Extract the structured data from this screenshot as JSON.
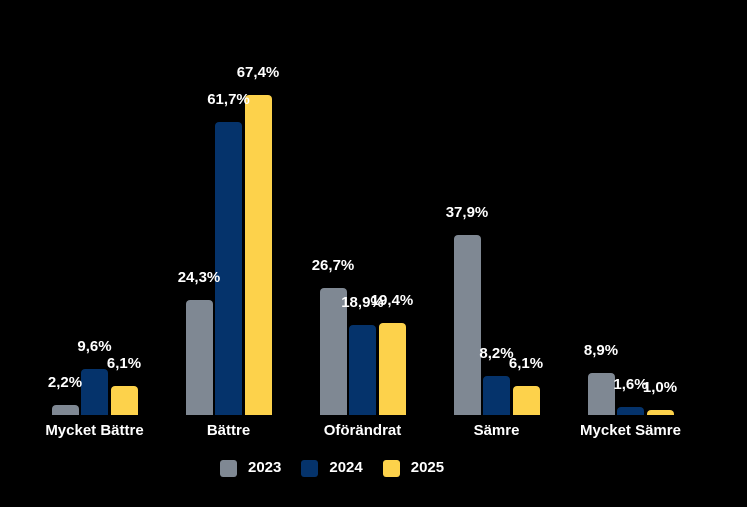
{
  "chart_data": {
    "type": "bar",
    "title": "",
    "xlabel": "",
    "ylabel": "",
    "categories": [
      "Mycket Bättre",
      "Bättre",
      "Oförändrat",
      "Sämre",
      "Mycket Sämre"
    ],
    "series": [
      {
        "name": "2023",
        "color": "#7F8893",
        "values": [
          2.2,
          24.3,
          26.7,
          37.9,
          8.9
        ],
        "labels": [
          "2,2%",
          "24,3%",
          "26,7%",
          "37,9%",
          "8,9%"
        ]
      },
      {
        "name": "2024",
        "color": "#05336B",
        "values": [
          9.6,
          61.7,
          18.9,
          8.2,
          1.6
        ],
        "labels": [
          "9,6%",
          "61,7%",
          "18,9%",
          "8,2%",
          "1,6%"
        ]
      },
      {
        "name": "2025",
        "color": "#FDD24B",
        "values": [
          6.1,
          67.4,
          19.4,
          6.1,
          1.0
        ],
        "labels": [
          "6,1%",
          "67,4%",
          "19,4%",
          "6,1%",
          "1,0%"
        ]
      }
    ],
    "value_unit": "%",
    "decimal_separator": ",",
    "ylim": [
      0,
      70
    ],
    "grid": false,
    "axis_lines": false,
    "legend_position": "bottom"
  },
  "colors": {
    "background": "#000000",
    "text": "#FFFFFF"
  }
}
